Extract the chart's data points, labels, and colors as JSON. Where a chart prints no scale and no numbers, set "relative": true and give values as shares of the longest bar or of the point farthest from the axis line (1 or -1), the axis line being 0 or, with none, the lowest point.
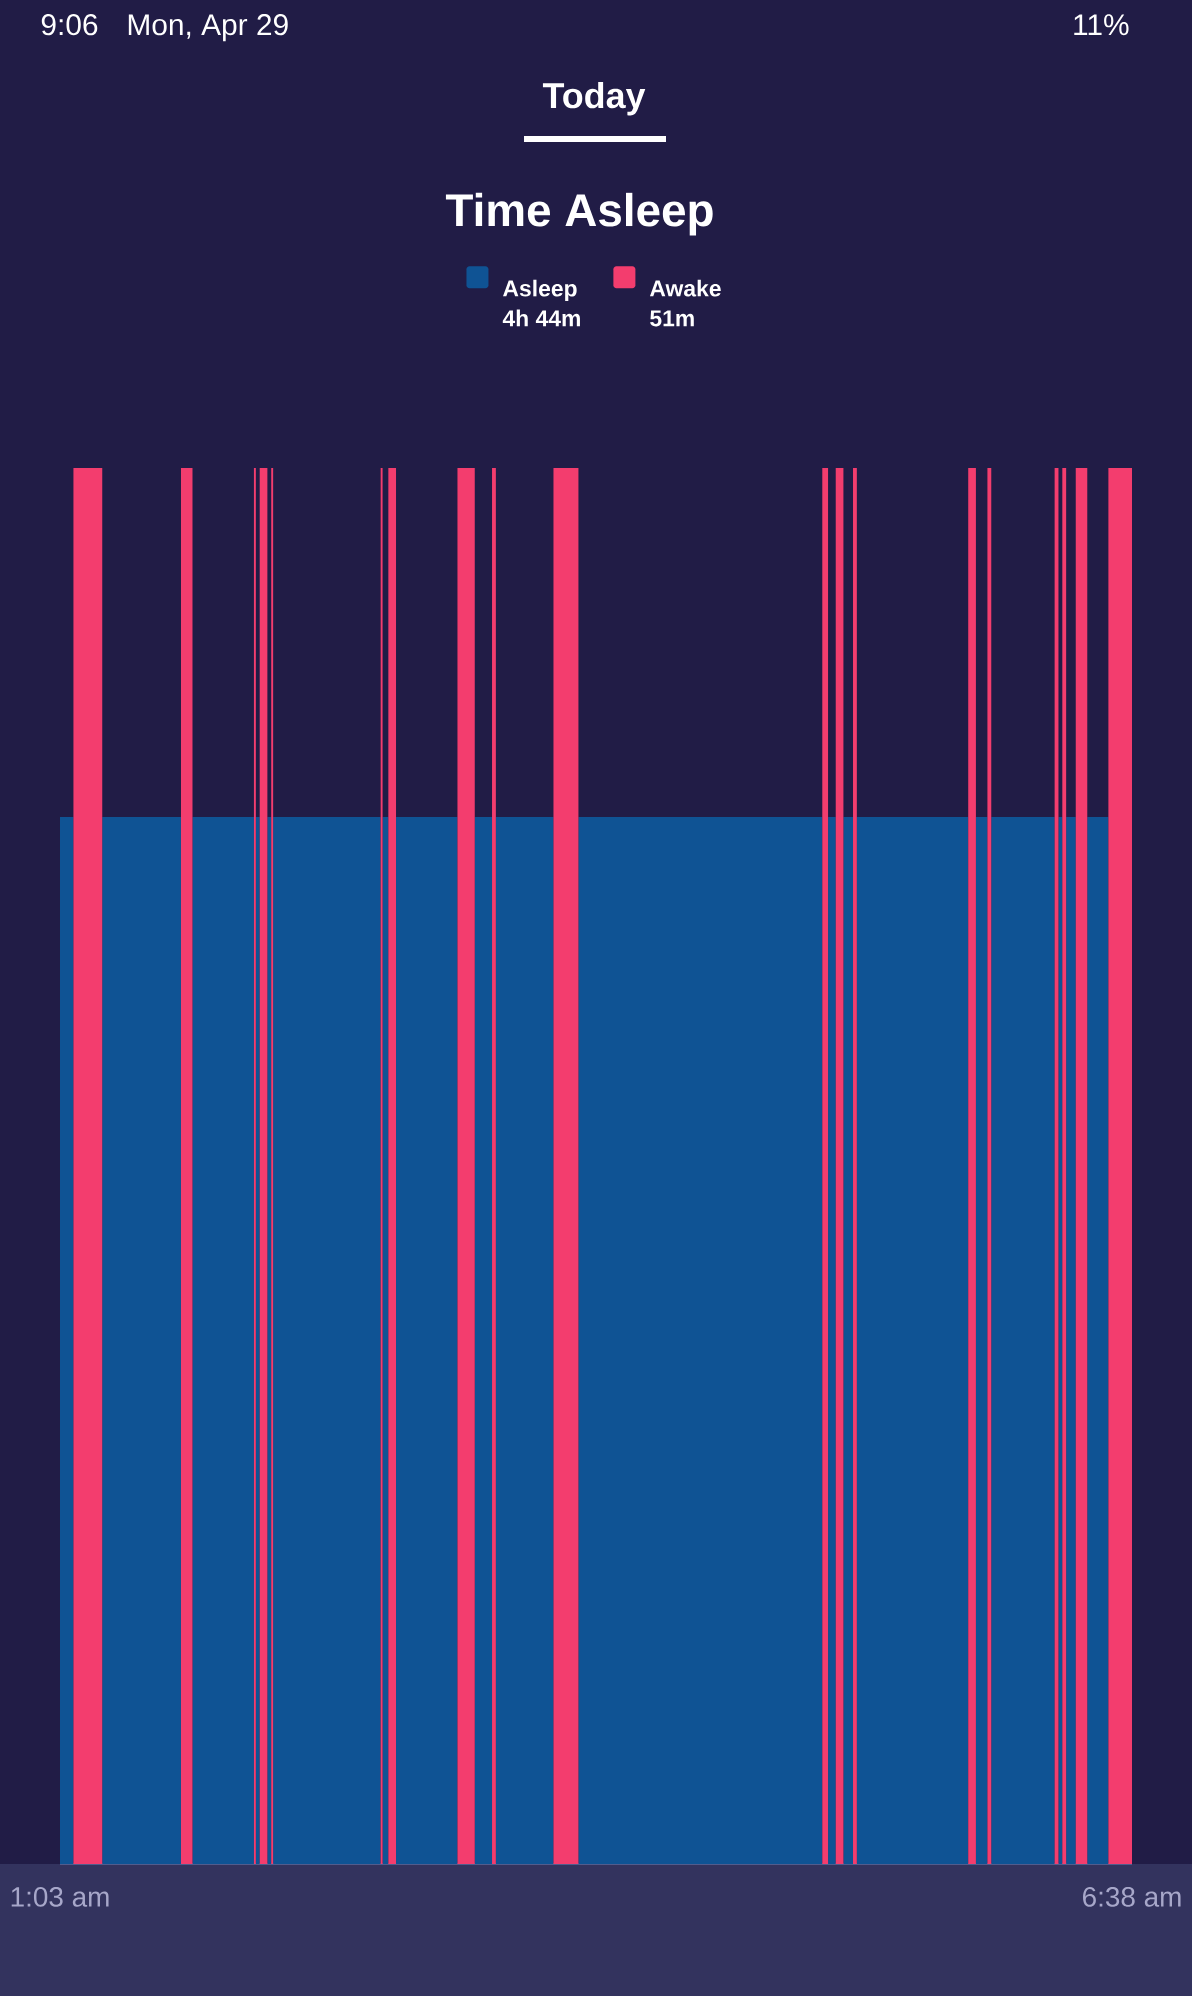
{
  "chart_data": {
    "type": "area",
    "title": "Time Asleep",
    "relative": true,
    "legend": "top",
    "x": [
      1.05,
      1.12,
      1.12,
      1.27,
      1.27,
      1.68,
      1.68,
      1.74,
      1.74,
      2.06,
      2.06,
      2.07,
      2.07,
      2.09,
      2.09,
      2.13,
      2.13,
      2.15,
      2.15,
      2.16,
      2.16,
      2.72,
      2.72,
      2.73,
      2.73,
      2.76,
      2.76,
      2.8,
      2.8,
      3.12,
      3.12,
      3.21,
      3.21,
      3.3,
      3.3,
      3.32,
      3.32,
      3.62,
      3.62,
      3.75,
      3.75,
      5.02,
      5.02,
      5.05,
      5.05,
      5.09,
      5.09,
      5.13,
      5.13,
      5.18,
      5.18,
      5.2,
      5.2,
      5.78,
      5.78,
      5.82,
      5.82,
      5.88,
      5.88,
      5.9,
      5.9,
      6.23,
      6.23,
      6.25,
      6.25,
      6.27,
      6.27,
      6.29,
      6.29,
      6.34,
      6.34,
      6.4,
      6.4,
      6.51,
      6.51,
      6.633
    ],
    "xlim": [
      1.05,
      6.633
    ],
    "xticks": [
      {
        "value": 1.05,
        "label": "1:03 am"
      },
      {
        "value": 6.633,
        "label": "6:38 am"
      }
    ],
    "series": [
      {
        "name": "Asleep",
        "color": "#0f5394",
        "values": [
          0.75,
          0.75,
          0,
          0,
          0.75,
          0.75,
          0,
          0,
          0.75,
          0.75,
          0,
          0,
          0.75,
          0.75,
          0,
          0,
          0.75,
          0.75,
          0,
          0,
          0.75,
          0.75,
          0,
          0,
          0.75,
          0.75,
          0,
          0,
          0.75,
          0.75,
          0,
          0,
          0.75,
          0.75,
          0,
          0,
          0.75,
          0.75,
          0,
          0,
          0.75,
          0.75,
          0,
          0,
          0.75,
          0.75,
          0,
          0,
          0.75,
          0.75,
          0,
          0,
          0.75,
          0.75,
          0,
          0,
          0.75,
          0.75,
          0,
          0,
          0.75,
          0.75,
          0,
          0,
          0.75,
          0.75,
          0,
          0,
          0.75,
          0.75,
          0,
          0,
          0.75,
          0.75,
          0,
          0
        ]
      },
      {
        "name": "Awake",
        "color": "#f33d6e",
        "values": [
          0,
          0,
          1,
          1,
          0,
          0,
          1,
          1,
          0,
          0,
          1,
          1,
          0,
          0,
          1,
          1,
          0,
          0,
          1,
          1,
          0,
          0,
          1,
          1,
          0,
          0,
          1,
          1,
          0,
          0,
          1,
          1,
          0,
          0,
          1,
          1,
          0,
          0,
          1,
          1,
          0,
          0,
          1,
          1,
          0,
          0,
          1,
          1,
          0,
          0,
          1,
          1,
          0,
          0,
          1,
          1,
          0,
          0,
          1,
          1,
          0,
          0,
          1,
          1,
          0,
          0,
          1,
          1,
          0,
          0,
          1,
          1,
          0,
          0,
          1,
          1
        ]
      }
    ],
    "annotations": [
      "9:06",
      "Mon, Apr 29",
      "11%",
      "Today",
      "4h 44m",
      "51m"
    ]
  }
}
